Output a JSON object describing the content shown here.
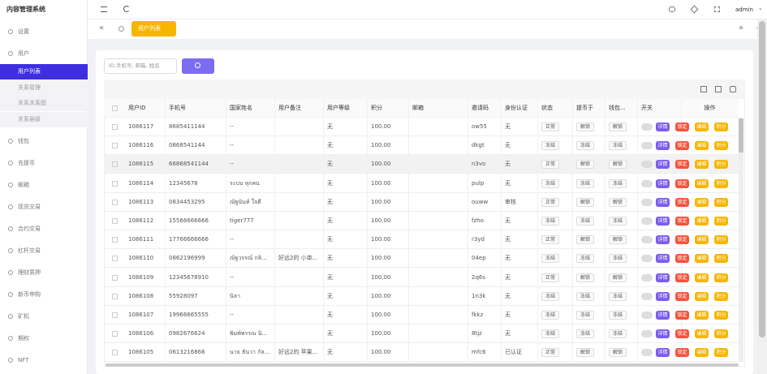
{
  "app": {
    "title": "内容管理系统",
    "user": "admin"
  },
  "menu": [
    {
      "label": "设置"
    },
    {
      "label": "用户",
      "children": [
        "用户列表",
        "关系管理",
        "关系关系图",
        "关系层级"
      ]
    },
    {
      "label": "钱包"
    },
    {
      "label": "充提币"
    },
    {
      "label": "邮箱"
    },
    {
      "label": "现货交易"
    },
    {
      "label": "合约交易"
    },
    {
      "label": "杠杆交易"
    },
    {
      "label": "理财质押"
    },
    {
      "label": "新币申购"
    },
    {
      "label": "矿机"
    },
    {
      "label": "期权"
    },
    {
      "label": "NFT"
    }
  ],
  "tab": "用户列表",
  "search": {
    "placeholder": "ID,手机号, 邮箱, 姓名"
  },
  "table": {
    "headers": [
      "用户ID",
      "手机号",
      "国家姓名",
      "用户备注",
      "用户等级",
      "积分",
      "邮箱",
      "邀请码",
      "身份认证",
      "状态",
      "提币于",
      "钱包...",
      "开关",
      "操作"
    ],
    "actions": [
      "详情",
      "锁定",
      "编辑",
      "积分"
    ],
    "rows": [
      {
        "id": "1086117",
        "phone": "8685411144",
        "name": "--",
        "level": "无",
        "points": "100.00",
        "invite": "ow55",
        "auth": "无",
        "status": "正常",
        "withdraw": "解锁",
        "wallet": "解锁"
      },
      {
        "id": "1086116",
        "phone": "0868541144",
        "name": "--",
        "level": "无",
        "points": "100.00",
        "invite": "dkgt",
        "auth": "无",
        "status": "冻结",
        "withdraw": "冻结",
        "wallet": "冻结"
      },
      {
        "id": "1086115",
        "phone": "66868541144",
        "name": "--",
        "level": "无",
        "points": "100.00",
        "invite": "n3vo",
        "auth": "无",
        "status": "正常",
        "withdraw": "解锁",
        "wallet": "解锁"
      },
      {
        "id": "1086114",
        "phone": "12345678",
        "name": "ระบบ ทุกคน",
        "level": "无",
        "points": "100.00",
        "invite": "pulp",
        "auth": "无",
        "status": "冻结",
        "withdraw": "冻结",
        "wallet": "冻结"
      },
      {
        "id": "1086113",
        "phone": "0834453295",
        "name": "ณัฐนันท์ ใจดี",
        "level": "无",
        "points": "100.00",
        "invite": "ouww",
        "auth": "审核",
        "status": "正常",
        "withdraw": "解锁",
        "wallet": "解锁"
      },
      {
        "id": "1086112",
        "phone": "15566666666",
        "name": "tiger777",
        "level": "无",
        "points": "100.00",
        "invite": "fzho",
        "auth": "无",
        "status": "冻结",
        "withdraw": "冻结",
        "wallet": "冻结"
      },
      {
        "id": "1086111",
        "phone": "17766666666",
        "name": "--",
        "level": "无",
        "points": "100.00",
        "invite": "r3yd",
        "auth": "无",
        "status": "正常",
        "withdraw": "解锁",
        "wallet": "解锁"
      },
      {
        "id": "1086110",
        "phone": "0862196999",
        "name": "ณัฐวรรณ์ กลิ...",
        "remark": "好远2的 小单...",
        "level": "无",
        "points": "100.00",
        "invite": "04ep",
        "auth": "无",
        "status": "冻结",
        "withdraw": "冻结",
        "wallet": "冻结"
      },
      {
        "id": "1086109",
        "phone": "12345678910",
        "name": "--",
        "level": "无",
        "points": "100.00",
        "invite": "2q6s",
        "auth": "无",
        "status": "正常",
        "withdraw": "解锁",
        "wallet": "解锁"
      },
      {
        "id": "1086108",
        "phone": "55928097",
        "name": "นิลา",
        "level": "无",
        "points": "100.00",
        "invite": "1n3k",
        "auth": "无",
        "status": "冻结",
        "withdraw": "冻结",
        "wallet": "冻结"
      },
      {
        "id": "1086107",
        "phone": "19966665555",
        "name": "--",
        "level": "无",
        "points": "100.00",
        "invite": "fkkz",
        "auth": "无",
        "status": "冻结",
        "withdraw": "冻结",
        "wallet": "冻结"
      },
      {
        "id": "1086106",
        "phone": "0982676624",
        "name": "พิมพ์พรรณ นิ...",
        "level": "无",
        "points": "100.00",
        "invite": "8tjz",
        "auth": "无",
        "status": "冻结",
        "withdraw": "冻结",
        "wallet": "冻结"
      },
      {
        "id": "1086105",
        "phone": "0613216866",
        "name": "นาย ธันวา กัล...",
        "remark": "好远2的 苹果...",
        "level": "无",
        "points": "100.00",
        "invite": "mfc6",
        "auth": "已认证",
        "status": "正常",
        "withdraw": "解锁",
        "wallet": "解锁"
      }
    ]
  }
}
